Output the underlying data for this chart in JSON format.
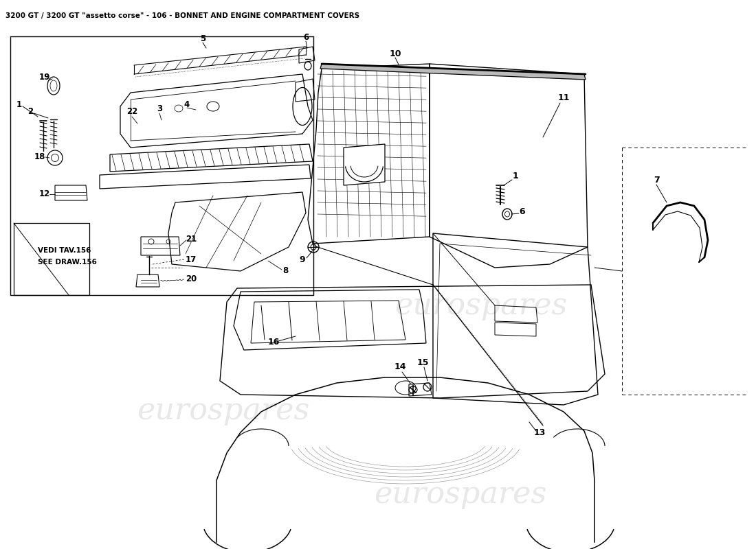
{
  "title": "3200 GT / 3200 GT \"assetto corse\" - 106 - BONNET AND ENGINE COMPARTMENT COVERS",
  "title_fontsize": 7.5,
  "bg": "#ffffff",
  "lc": "#000000",
  "wm_color": "#cccccc",
  "wm_text": "eurospares",
  "wm_fs": 32,
  "wm_alpha": 0.45
}
